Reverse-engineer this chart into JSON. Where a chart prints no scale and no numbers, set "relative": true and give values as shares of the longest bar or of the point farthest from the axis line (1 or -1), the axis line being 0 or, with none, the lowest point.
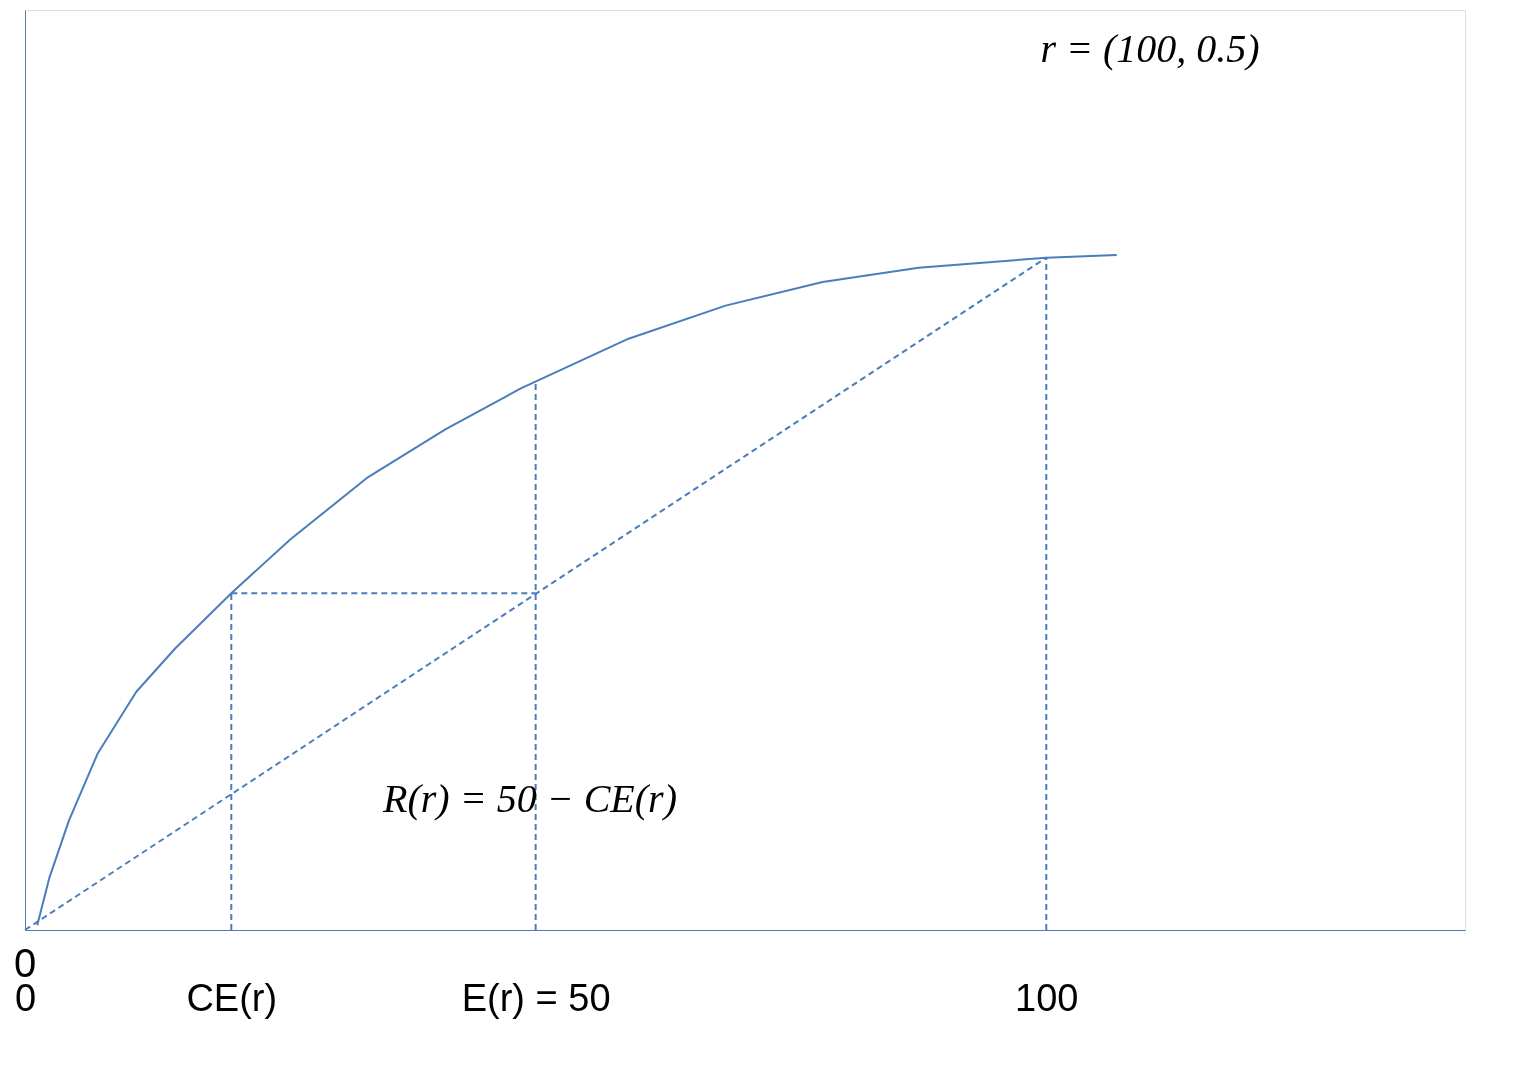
{
  "chart_data": {
    "type": "line",
    "relative": true,
    "xlim": [
      0,
      141
    ],
    "xticks": [
      0,
      {
        "value": 20.2,
        "label": "CE(r)"
      },
      {
        "value": 50,
        "label": "E(r) = 50"
      },
      100
    ],
    "annotations": [
      "r = (100, 0.5)",
      "R(r) = 50 − CE(r)",
      "0"
    ],
    "grid": false,
    "marker": "none",
    "series": [
      {
        "color": "#4a7ebb",
        "line_style": "solid",
        "x": [
          1.2,
          2.4,
          4.3,
          7.1,
          10.9,
          14.7,
          20.2,
          26.0,
          33.6,
          41.2,
          48.5,
          59.1,
          68.6,
          78.1,
          87.5,
          100,
          106.9
        ],
        "values": [
          0.007,
          0.078,
          0.162,
          0.261,
          0.353,
          0.417,
          0.499,
          0.579,
          0.671,
          0.742,
          0.802,
          0.876,
          0.925,
          0.96,
          0.981,
          0.996,
          1
        ]
      },
      {
        "color": "#4a7ebb",
        "line_style": "dashed",
        "x": [
          0,
          100
        ],
        "values": [
          0,
          0.996
        ]
      },
      {
        "color": "#4a7ebb",
        "line_style": "dashed",
        "x": [
          20.2,
          20.2
        ],
        "values": [
          0,
          0.499
        ]
      },
      {
        "color": "#4a7ebb",
        "line_style": "dashed",
        "x": [
          20.2,
          50
        ],
        "values": [
          0.499,
          0.499
        ]
      },
      {
        "color": "#4a7ebb",
        "line_style": "dashed",
        "x": [
          50,
          50
        ],
        "values": [
          0,
          0.81
        ]
      },
      {
        "color": "#4a7ebb",
        "line_style": "dashed",
        "x": [
          100,
          100
        ],
        "values": [
          0,
          0.996
        ]
      }
    ]
  }
}
